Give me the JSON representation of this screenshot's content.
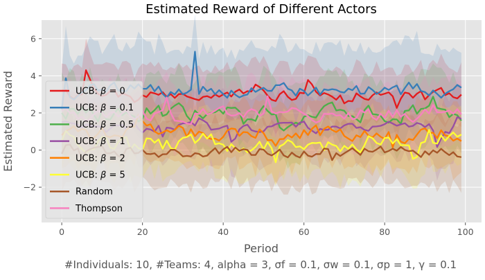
{
  "chart_data": {
    "type": "line",
    "title": "Estimated Reward of Different Actors",
    "xlabel": "Period",
    "ylabel": "Estimated Reward",
    "caption": "#Individuals: 10,  #Teams: 4,  alpha = 3,  σf = 0.1,  σw = 0.1,  σp = 1, γ = 0.1",
    "xlim": [
      -5,
      104
    ],
    "ylim": [
      -3.9,
      7.0
    ],
    "xticks": [
      0,
      20,
      40,
      60,
      80,
      100
    ],
    "yticks": [
      -2,
      0,
      2,
      4,
      6
    ],
    "grid": true,
    "legend_position": "left",
    "n_points": 100,
    "series": [
      {
        "name": "UCB: β = 0",
        "label_prefix": "UCB: ",
        "label_var": "β",
        "label_value": "= 0",
        "color": "#e41a1c",
        "mean": 3.0,
        "band": 1.5,
        "start": 3.2,
        "peak_at": 6,
        "peak_value": 4.3
      },
      {
        "name": "UCB: β = 0.1",
        "label_prefix": "UCB: ",
        "label_var": "β",
        "label_value": "= 0.1",
        "color": "#377eb8",
        "mean": 3.2,
        "band": 2.3,
        "start": 2.2,
        "peak_at": 33,
        "peak_value": 5.3
      },
      {
        "name": "UCB: β = 0.5",
        "label_prefix": "UCB: ",
        "label_var": "β",
        "label_value": "= 0.5",
        "color": "#4daf4a",
        "mean": 2.0,
        "band": 1.8,
        "start": 2.0
      },
      {
        "name": "UCB: β = 1",
        "label_prefix": "UCB: ",
        "label_var": "β",
        "label_value": "= 1",
        "color": "#984ea3",
        "mean": 1.2,
        "band": 1.7,
        "start": 1.5
      },
      {
        "name": "UCB: β = 2",
        "label_prefix": "UCB: ",
        "label_var": "β",
        "label_value": "= 2",
        "color": "#ff7f00",
        "mean": 0.9,
        "band": 1.7,
        "start": 0.8
      },
      {
        "name": "UCB: β = 5",
        "label_prefix": "UCB: ",
        "label_var": "β",
        "label_value": "= 5",
        "color": "#ffff33",
        "mean": 0.4,
        "band": 1.6,
        "start": 0.5
      },
      {
        "name": "Random",
        "label_prefix": "Random",
        "label_var": "",
        "label_value": "",
        "color": "#a65628",
        "mean": -0.1,
        "band": 1.7,
        "start": -0.2
      },
      {
        "name": "Thompson",
        "label_prefix": "Thompson",
        "label_var": "",
        "label_value": "",
        "color": "#f781bf",
        "mean": 1.9,
        "band": 1.6,
        "start": 2.1
      }
    ]
  }
}
